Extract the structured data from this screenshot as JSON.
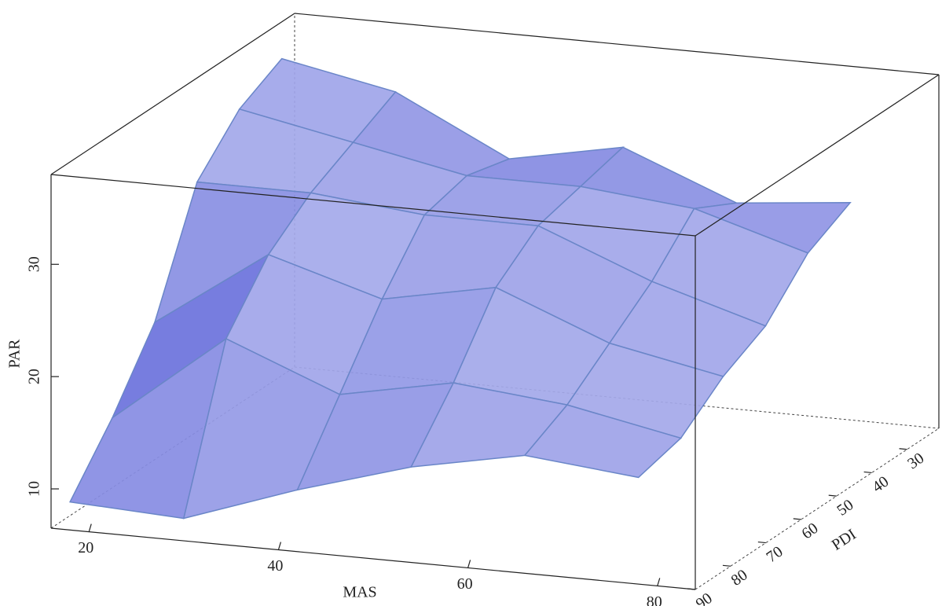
{
  "chart_data": {
    "type": "surface3d",
    "x_label": "MAS",
    "y_label": "PDI",
    "z_label": "PAR",
    "x": [
      18,
      30,
      42,
      54,
      66,
      78
    ],
    "y": [
      90,
      78,
      66,
      54,
      42,
      30
    ],
    "z": [
      [
        9,
        8.5,
        12,
        15,
        17,
        16
      ],
      [
        14,
        22,
        18,
        20,
        19,
        17
      ],
      [
        20,
        27,
        24,
        26,
        22,
        20
      ],
      [
        30,
        30,
        29,
        29,
        25,
        22
      ],
      [
        34,
        32,
        30,
        30,
        29,
        26
      ],
      [
        36,
        34,
        29,
        31,
        27,
        28
      ]
    ],
    "xlim": [
      16,
      84
    ],
    "ylim": [
      90,
      21
    ],
    "zlim": [
      6.5,
      38
    ],
    "xticks": [
      20,
      40,
      60,
      80
    ],
    "yticks": [
      90,
      80,
      70,
      60,
      50,
      40,
      30
    ],
    "zticks": [
      10,
      20,
      30
    ],
    "color": "#5a62d8"
  }
}
